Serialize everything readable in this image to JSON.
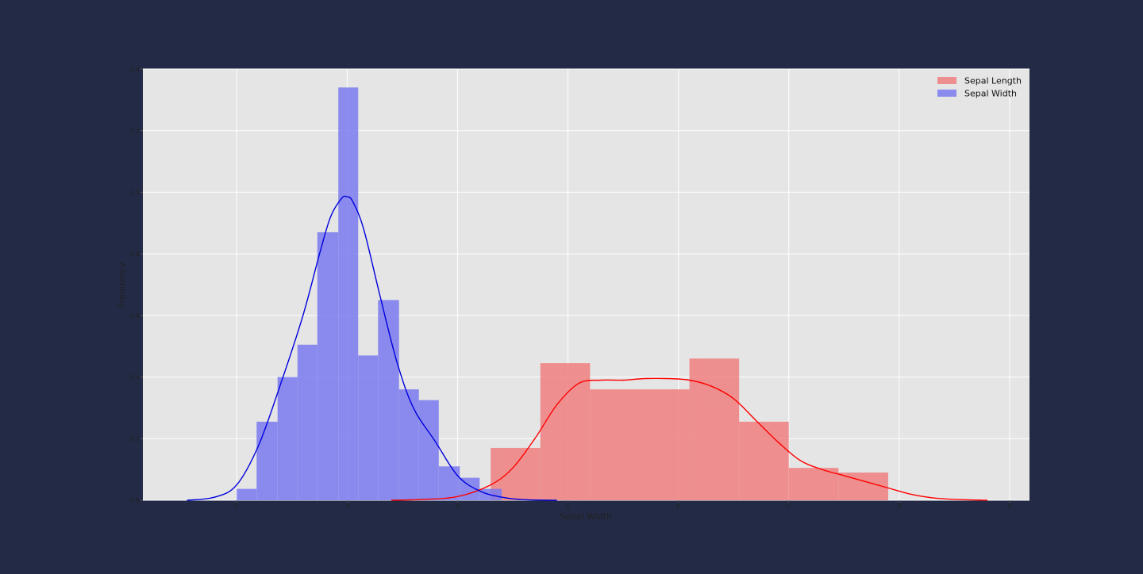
{
  "chart_data": {
    "type": "bar",
    "title": "",
    "xlabel": "Sepal Width",
    "ylabel": "Frequency",
    "xlim": [
      1.15,
      9.18
    ],
    "ylim": [
      0,
      1.4
    ],
    "xticks": [
      2,
      3,
      4,
      5,
      6,
      7,
      8,
      9
    ],
    "yticks": [
      0.0,
      0.2,
      0.4,
      0.6,
      0.8,
      1.0,
      1.2,
      1.4
    ],
    "grid": true,
    "legend_position": "top-right",
    "series": [
      {
        "name": "Sepal Length",
        "kind": "histogram",
        "color": "#f08080",
        "bins": [
          {
            "x0": 4.3,
            "x1": 4.75,
            "density": 0.17
          },
          {
            "x0": 4.75,
            "x1": 5.2,
            "density": 0.445
          },
          {
            "x0": 5.2,
            "x1": 5.65,
            "density": 0.36
          },
          {
            "x0": 5.65,
            "x1": 6.1,
            "density": 0.36
          },
          {
            "x0": 6.1,
            "x1": 6.55,
            "density": 0.46
          },
          {
            "x0": 6.55,
            "x1": 7.0,
            "density": 0.255
          },
          {
            "x0": 7.0,
            "x1": 7.45,
            "density": 0.105
          },
          {
            "x0": 7.45,
            "x1": 7.9,
            "density": 0.09
          }
        ],
        "kde": {
          "line_color": "#ff0000",
          "x": [
            3.4,
            3.7,
            4.0,
            4.3,
            4.5,
            4.7,
            4.9,
            5.1,
            5.3,
            5.5,
            5.7,
            5.9,
            6.1,
            6.3,
            6.5,
            6.7,
            6.9,
            7.1,
            7.3,
            7.5,
            7.7,
            7.9,
            8.1,
            8.3,
            8.5,
            8.8
          ],
          "y": [
            0.0,
            0.003,
            0.012,
            0.05,
            0.105,
            0.2,
            0.31,
            0.38,
            0.39,
            0.39,
            0.395,
            0.395,
            0.39,
            0.37,
            0.33,
            0.26,
            0.19,
            0.13,
            0.1,
            0.08,
            0.06,
            0.04,
            0.02,
            0.008,
            0.003,
            0.0
          ]
        }
      },
      {
        "name": "Sepal Width",
        "kind": "histogram",
        "color": "#7b7bf0",
        "bins": [
          {
            "x0": 2.0,
            "x1": 2.18,
            "density": 0.037
          },
          {
            "x0": 2.18,
            "x1": 2.37,
            "density": 0.255
          },
          {
            "x0": 2.37,
            "x1": 2.55,
            "density": 0.4
          },
          {
            "x0": 2.55,
            "x1": 2.73,
            "density": 0.505
          },
          {
            "x0": 2.73,
            "x1": 2.92,
            "density": 0.87
          },
          {
            "x0": 2.92,
            "x1": 3.1,
            "density": 1.34
          },
          {
            "x0": 3.1,
            "x1": 3.28,
            "density": 0.47
          },
          {
            "x0": 3.28,
            "x1": 3.47,
            "density": 0.65
          },
          {
            "x0": 3.47,
            "x1": 3.65,
            "density": 0.36
          },
          {
            "x0": 3.65,
            "x1": 3.83,
            "density": 0.325
          },
          {
            "x0": 3.83,
            "x1": 4.02,
            "density": 0.11
          },
          {
            "x0": 4.02,
            "x1": 4.2,
            "density": 0.073
          },
          {
            "x0": 4.2,
            "x1": 4.4,
            "density": 0.037
          }
        ],
        "kde": {
          "line_color": "#0000dd",
          "x": [
            1.55,
            1.8,
            2.0,
            2.2,
            2.4,
            2.6,
            2.75,
            2.85,
            2.95,
            3.0,
            3.05,
            3.15,
            3.3,
            3.45,
            3.6,
            3.8,
            4.0,
            4.2,
            4.4,
            4.6,
            4.9
          ],
          "y": [
            0.0,
            0.01,
            0.05,
            0.18,
            0.38,
            0.6,
            0.8,
            0.92,
            0.98,
            0.985,
            0.97,
            0.88,
            0.66,
            0.45,
            0.3,
            0.19,
            0.08,
            0.03,
            0.01,
            0.002,
            0.0
          ]
        }
      }
    ]
  }
}
